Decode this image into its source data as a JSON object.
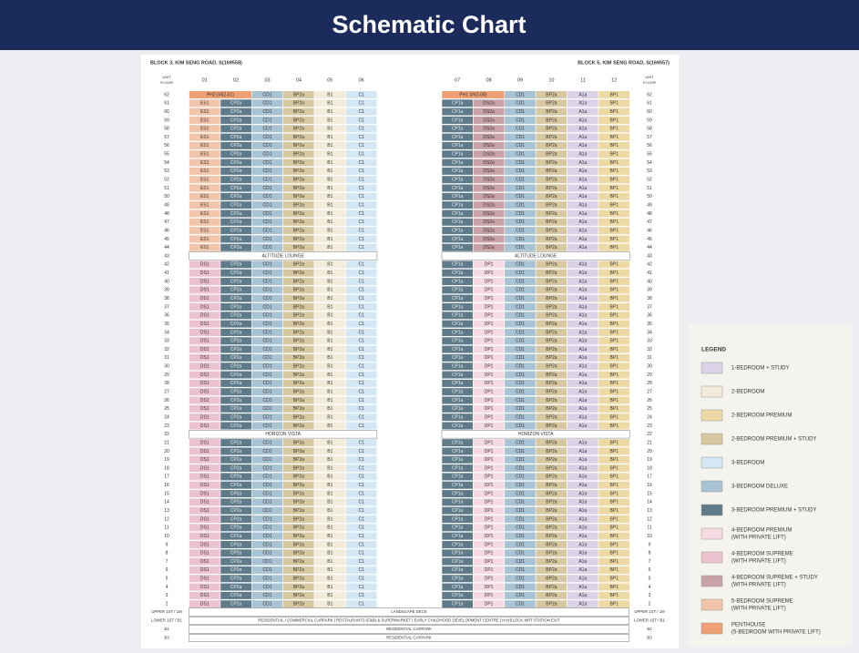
{
  "header": {
    "title": "Schematic Chart"
  },
  "unit_floor_label": [
    "UNIT",
    "FLOOR"
  ],
  "floors": [
    62,
    61,
    60,
    59,
    58,
    57,
    56,
    55,
    54,
    53,
    52,
    51,
    50,
    49,
    48,
    47,
    46,
    45,
    44,
    43,
    42,
    41,
    40,
    39,
    38,
    37,
    36,
    35,
    34,
    33,
    32,
    31,
    30,
    29,
    28,
    27,
    26,
    25,
    24,
    23,
    22,
    21,
    20,
    19,
    18,
    17,
    16,
    15,
    14,
    13,
    12,
    11,
    10,
    9,
    8,
    7,
    6,
    5,
    4,
    3,
    2
  ],
  "blocks": [
    {
      "title": "BLOCK 3, KIM SENG ROAD, S(169558)",
      "units": [
        "01",
        "02",
        "03",
        "04",
        "05",
        "06"
      ],
      "rows": [
        [
          "PH2 (#62-01)",
          null,
          "CD1",
          "BP2a",
          "B1",
          "C1"
        ],
        [
          "ES1",
          "CP2a",
          "CD1",
          "BP2a",
          "B1",
          "C1"
        ],
        [
          "ES1",
          "CP2a",
          "CD1",
          "BP2a",
          "B1",
          "C1"
        ],
        [
          "ES1",
          "CP2a",
          "CD1",
          "BP2a",
          "B1",
          "C1"
        ],
        [
          "ES1",
          "CP2a",
          "CD1",
          "BP2a",
          "B1",
          "C1"
        ],
        [
          "ES1",
          "CP2a",
          "CD1",
          "BP2a",
          "B1",
          "C1"
        ],
        [
          "ES1",
          "CP2a",
          "CD1",
          "BP2a",
          "B1",
          "C1"
        ],
        [
          "ES1",
          "CP2a",
          "CD1",
          "BP2a",
          "B1",
          "C1"
        ],
        [
          "ES1",
          "CP2a",
          "CD1",
          "BP2a",
          "B1",
          "C1"
        ],
        [
          "ES1",
          "CP2a",
          "CD1",
          "BP2a",
          "B1",
          "C1"
        ],
        [
          "ES1",
          "CP2a",
          "CD1",
          "BP2a",
          "B1",
          "C1"
        ],
        [
          "ES1",
          "CP2a",
          "CD1",
          "BP2a",
          "B1",
          "C1"
        ],
        [
          "ES1",
          "CP2a",
          "CD1",
          "BP2a",
          "B1",
          "C1"
        ],
        [
          "ES1",
          "CP2a",
          "CD1",
          "BP2a",
          "B1",
          "C1"
        ],
        [
          "ES1",
          "CP2a",
          "CD1",
          "BP2a",
          "B1",
          "C1"
        ],
        [
          "ES1",
          "CP2a",
          "CD1",
          "BP2a",
          "B1",
          "C1"
        ],
        [
          "ES1",
          "CP2a",
          "CD1",
          "BP2a",
          "B1",
          "C1"
        ],
        [
          "ES1",
          "CP2a",
          "CD1",
          "BP2a",
          "B1",
          "C1"
        ],
        [
          "ES1",
          "CP2a",
          "CD1",
          "BP2a",
          "B1",
          "C1"
        ],
        "ALTITUDE LOUNGE",
        [
          "DS1",
          "CP2a",
          "CD1",
          "BP2a",
          "B1",
          "C1"
        ],
        [
          "DS1",
          "CP2a",
          "CD1",
          "BP2a",
          "B1",
          "C1"
        ],
        [
          "DS1",
          "CP2a",
          "CD1",
          "BP2a",
          "B1",
          "C1"
        ],
        [
          "DS1",
          "CP2a",
          "CD1",
          "BP2a",
          "B1",
          "C1"
        ],
        [
          "DS1",
          "CP2a",
          "CD1",
          "BP2a",
          "B1",
          "C1"
        ],
        [
          "DS1",
          "CP2a",
          "CD1",
          "BP2a",
          "B1",
          "C1"
        ],
        [
          "DS1",
          "CP2a",
          "CD1",
          "BP2a",
          "B1",
          "C1"
        ],
        [
          "DS1",
          "CP2a",
          "CD1",
          "BP2a",
          "B1",
          "C1"
        ],
        [
          "DS1",
          "CP2a",
          "CD1",
          "BP2a",
          "B1",
          "C1"
        ],
        [
          "DS1",
          "CP2a",
          "CD1",
          "BP2a",
          "B1",
          "C1"
        ],
        [
          "DS1",
          "CP2a",
          "CD1",
          "BP2a",
          "B1",
          "C1"
        ],
        [
          "DS1",
          "CP2a",
          "CD1",
          "BP2a",
          "B1",
          "C1"
        ],
        [
          "DS1",
          "CP2a",
          "CD1",
          "BP2a",
          "B1",
          "C1"
        ],
        [
          "DS1",
          "CP2a",
          "CD1",
          "BP2a",
          "B1",
          "C1"
        ],
        [
          "DS1",
          "CP2a",
          "CD1",
          "BP2a",
          "B1",
          "C1"
        ],
        [
          "DS1",
          "CP2a",
          "CD1",
          "BP2a",
          "B1",
          "C1"
        ],
        [
          "DS1",
          "CP2a",
          "CD1",
          "BP2a",
          "B1",
          "C1"
        ],
        [
          "DS1",
          "CP2a",
          "CD1",
          "BP2a",
          "B1",
          "C1"
        ],
        [
          "DS1",
          "CP2a",
          "CD1",
          "BP2a",
          "B1",
          "C1"
        ],
        [
          "DS1",
          "CP2a",
          "CD1",
          "BP2a",
          "B1",
          "C1"
        ],
        "HORIZON VISTA",
        [
          "DS1",
          "CP2a",
          "CD1",
          "BP2a",
          "B1",
          "C1"
        ],
        [
          "DS1",
          "CP2a",
          "CD1",
          "BP2a",
          "B1",
          "C1"
        ],
        [
          "DS1",
          "CP2a",
          "CD1",
          "BP2a",
          "B1",
          "C1"
        ],
        [
          "DS1",
          "CP2a",
          "CD1",
          "BP2a",
          "B1",
          "C1"
        ],
        [
          "DS1",
          "CP2a",
          "CD1",
          "BP2a",
          "B1",
          "C1"
        ],
        [
          "DS1",
          "CP2a",
          "CD1",
          "BP2a",
          "B1",
          "C1"
        ],
        [
          "DS1",
          "CP2a",
          "CD1",
          "BP2a",
          "B1",
          "C1"
        ],
        [
          "DS1",
          "CP2a",
          "CD1",
          "BP2a",
          "B1",
          "C1"
        ],
        [
          "DS1",
          "CP2a",
          "CD1",
          "BP2a",
          "B1",
          "C1"
        ],
        [
          "DS1",
          "CP2a",
          "CD1",
          "BP2a",
          "B1",
          "C1"
        ],
        [
          "DS1",
          "CP2a",
          "CD1",
          "BP2a",
          "B1",
          "C1"
        ],
        [
          "DS1",
          "CP2a",
          "CD1",
          "BP2a",
          "B1",
          "C1"
        ],
        [
          "DS1",
          "CP2a",
          "CD1",
          "BP2a",
          "B1",
          "C1"
        ],
        [
          "DS1",
          "CP2a",
          "CD1",
          "BP2a",
          "B1",
          "C1"
        ],
        [
          "DS1",
          "CP2a",
          "CD1",
          "BP2a",
          "B1",
          "C1"
        ],
        [
          "DS1",
          "CP2a",
          "CD1",
          "BP2a",
          "B1",
          "C1"
        ],
        [
          "DS1",
          "CP2a",
          "CD1",
          "BP2a",
          "B1",
          "C1"
        ],
        [
          "DS1",
          "CP2a",
          "CD1",
          "BP2a",
          "B1",
          "C1"
        ],
        [
          "DS1",
          "CP2a",
          "CD1",
          "BP2a",
          "B1",
          "C1"
        ],
        [
          "DS1",
          "CP2a",
          "CD1",
          "BP2a",
          "B1",
          "C1"
        ]
      ]
    },
    {
      "title": "BLOCK 5, KIM SENG ROAD, S(169557)",
      "units": [
        "07",
        "08",
        "09",
        "10",
        "11",
        "12"
      ],
      "rows": [
        [
          "PH1 (#62-08)",
          null,
          "CD1",
          "BP2a",
          "A1a",
          "BP1"
        ],
        [
          "CP1a",
          "DS2a",
          "CD1",
          "BP2a",
          "A1a",
          "BP1"
        ],
        [
          "CP1a",
          "DS2a",
          "CD1",
          "BP2a",
          "A1a",
          "BP1"
        ],
        [
          "CP1a",
          "DS2a",
          "CD1",
          "BP2a",
          "A1a",
          "BP1"
        ],
        [
          "CP1a",
          "DS2a",
          "CD1",
          "BP2a",
          "A1a",
          "BP1"
        ],
        [
          "CP1a",
          "DS2a",
          "CD1",
          "BP2a",
          "A1a",
          "BP1"
        ],
        [
          "CP1a",
          "DS2a",
          "CD1",
          "BP2a",
          "A1a",
          "BP1"
        ],
        [
          "CP1a",
          "DS2a",
          "CD1",
          "BP2a",
          "A1a",
          "BP1"
        ],
        [
          "CP1a",
          "DS2a",
          "CD1",
          "BP2a",
          "A1a",
          "BP1"
        ],
        [
          "CP1a",
          "DS2a",
          "CD1",
          "BP2a",
          "A1a",
          "BP1"
        ],
        [
          "CP1a",
          "DS2a",
          "CD1",
          "BP2a",
          "A1a",
          "BP1"
        ],
        [
          "CP1a",
          "DS2a",
          "CD1",
          "BP2a",
          "A1a",
          "BP1"
        ],
        [
          "CP1a",
          "DS2a",
          "CD1",
          "BP2a",
          "A1a",
          "BP1"
        ],
        [
          "CP1a",
          "DS2a",
          "CD1",
          "BP2a",
          "A1a",
          "BP1"
        ],
        [
          "CP1a",
          "DS2a",
          "CD1",
          "BP2a",
          "A1a",
          "BP1"
        ],
        [
          "CP1a",
          "DS2a",
          "CD1",
          "BP2a",
          "A1a",
          "BP1"
        ],
        [
          "CP1a",
          "DS2a",
          "CD1",
          "BP2a",
          "A1a",
          "BP1"
        ],
        [
          "CP1a",
          "DS2a",
          "CD1",
          "BP2a",
          "A1a",
          "BP1"
        ],
        [
          "CP1a",
          "DS2a",
          "CD1",
          "BP2a",
          "A1a",
          "BP1"
        ],
        "ALTITUDE LOUNGE",
        [
          "CP1a",
          "DP1",
          "CD1",
          "BP2a",
          "A1a",
          "BP1"
        ],
        [
          "CP1a",
          "DP1",
          "CD1",
          "BP2a",
          "A1a",
          "BP1"
        ],
        [
          "CP1a",
          "DP1",
          "CD1",
          "BP2a",
          "A1a",
          "BP1"
        ],
        [
          "CP1a",
          "DP1",
          "CD1",
          "BP2a",
          "A1a",
          "BP1"
        ],
        [
          "CP1a",
          "DP1",
          "CD1",
          "BP2a",
          "A1a",
          "BP1"
        ],
        [
          "CP1a",
          "DP1",
          "CD1",
          "BP2a",
          "A1a",
          "BP1"
        ],
        [
          "CP1a",
          "DP1",
          "CD1",
          "BP2a",
          "A1a",
          "BP1"
        ],
        [
          "CP1a",
          "DP1",
          "CD1",
          "BP2a",
          "A1a",
          "BP1"
        ],
        [
          "CP1a",
          "DP1",
          "CD1",
          "BP2a",
          "A1a",
          "BP1"
        ],
        [
          "CP1a",
          "DP1",
          "CD1",
          "BP2a",
          "A1a",
          "BP1"
        ],
        [
          "CP1a",
          "DP1",
          "CD1",
          "BP2a",
          "A1a",
          "BP1"
        ],
        [
          "CP1a",
          "DP1",
          "CD1",
          "BP2a",
          "A1a",
          "BP1"
        ],
        [
          "CP1a",
          "DP1",
          "CD1",
          "BP2a",
          "A1a",
          "BP1"
        ],
        [
          "CP1a",
          "DP1",
          "CD1",
          "BP2a",
          "A1a",
          "BP1"
        ],
        [
          "CP1a",
          "DP1",
          "CD1",
          "BP2a",
          "A1a",
          "BP1"
        ],
        [
          "CP1a",
          "DP1",
          "CD1",
          "BP2a",
          "A1a",
          "BP1"
        ],
        [
          "CP1a",
          "DP1",
          "CD1",
          "BP2a",
          "A1a",
          "BP1"
        ],
        [
          "CP1a",
          "DP1",
          "CD1",
          "BP2a",
          "A1a",
          "BP1"
        ],
        [
          "CP1a",
          "DP1",
          "CD1",
          "BP2a",
          "A1a",
          "BP1"
        ],
        [
          "CP1a",
          "DP1",
          "CD1",
          "BP2a",
          "A1a",
          "BP1"
        ],
        "HORIZON VISTA",
        [
          "CP1a",
          "DP1",
          "CD1",
          "BP2a",
          "A1a",
          "BP1"
        ],
        [
          "CP1a",
          "DP1",
          "CD1",
          "BP2a",
          "A1a",
          "BP1"
        ],
        [
          "CP1a",
          "DP1",
          "CD1",
          "BP2a",
          "A1a",
          "BP1"
        ],
        [
          "CP1a",
          "DP1",
          "CD1",
          "BP2a",
          "A1a",
          "BP1"
        ],
        [
          "CP1a",
          "DP1",
          "CD1",
          "BP2a",
          "A1a",
          "BP1"
        ],
        [
          "CP1a",
          "DP1",
          "CD1",
          "BP2a",
          "A1a",
          "BP1"
        ],
        [
          "CP1a",
          "DP1",
          "CD1",
          "BP2a",
          "A1a",
          "BP1"
        ],
        [
          "CP1a",
          "DP1",
          "CD1",
          "BP2a",
          "A1a",
          "BP1"
        ],
        [
          "CP1a",
          "DP1",
          "CD1",
          "BP2a",
          "A1a",
          "BP1"
        ],
        [
          "CP1a",
          "DP1",
          "CD1",
          "BP2a",
          "A1a",
          "BP1"
        ],
        [
          "CP1a",
          "DP1",
          "CD1",
          "BP2a",
          "A1a",
          "BP1"
        ],
        [
          "CP1a",
          "DP1",
          "CD1",
          "BP2a",
          "A1a",
          "BP1"
        ],
        [
          "CP1a",
          "DP1",
          "CD1",
          "BP2a",
          "A1a",
          "BP1"
        ],
        [
          "CP1a",
          "DP1",
          "CD1",
          "BP2a",
          "A1a",
          "BP1"
        ],
        [
          "CP1a",
          "DP1",
          "CD1",
          "BP2a",
          "A1a",
          "BP1"
        ],
        [
          "CP1a",
          "DP1",
          "CD1",
          "BP2a",
          "A1a",
          "BP1"
        ],
        [
          "CP1a",
          "DP1",
          "CD1",
          "BP2a",
          "A1a",
          "BP1"
        ],
        [
          "CP1a",
          "DP1",
          "CD1",
          "BP2a",
          "A1a",
          "BP1"
        ],
        [
          "CP1a",
          "DP1",
          "CD1",
          "BP2a",
          "A1a",
          "BP1"
        ],
        [
          "CP1a",
          "DP1",
          "CD1",
          "BP2a",
          "A1a",
          "BP1"
        ]
      ]
    }
  ],
  "unit_colors": {
    "PH2 (#62-01)": "#ee9f74",
    "PH1 (#62-08)": "#ee9f74",
    "ES1": "#f2c4aa",
    "DS1": "#ecc2ce",
    "DS2a": "#c9a2a8",
    "DP1": "#f6dae1",
    "CP2a": "#5f7b89",
    "CP1a": "#5f7b89",
    "CD1": "#a8c3d3",
    "C1": "#d3e8f4",
    "BP2a": "#d8c8a0",
    "BP1": "#edd9a4",
    "B1": "#f4ecdb",
    "A1a": "#dcd2e8"
  },
  "lower_floors": [
    {
      "left": "UPPER 1ST / 1M",
      "text": "LANDSCAPE DECK",
      "right": "UPPER 1ST / 1M"
    },
    {
      "left": "LOWER 1ST / B1",
      "text": "RESIDENTIAL / COMMERCIAL CARPARK  |  RESTAURANTS (F&B) & SUPERMARKET  |  EARLY CHILDHOOD DEVELOPMENT CENTRE  |  HAVELOCK MRT STATION EXIT",
      "right": "LOWER 1ST / B1"
    },
    {
      "left": "B2",
      "text": "RESIDENTIAL CARPARK",
      "right": "B2"
    },
    {
      "left": "B3",
      "text": "RESIDENTIAL CARPARK",
      "right": "B3"
    }
  ],
  "legend": {
    "title": "LEGEND",
    "items": [
      {
        "label": [
          "1-BEDROOM + STUDY"
        ],
        "color": "#dcd2e8"
      },
      {
        "label": [
          "2-BEDROOM"
        ],
        "color": "#f4ecdb"
      },
      {
        "label": [
          "2-BEDROOM PREMIUM"
        ],
        "color": "#edd9a4"
      },
      {
        "label": [
          "2-BEDROOM PREMIUM + STUDY"
        ],
        "color": "#d8c8a0"
      },
      {
        "label": [
          "3-BEDROOM"
        ],
        "color": "#d3e8f4"
      },
      {
        "label": [
          "3-BEDROOM DELUXE"
        ],
        "color": "#a8c3d3"
      },
      {
        "label": [
          "3-BEDROOM PREMIUM + STUDY"
        ],
        "color": "#5f7b89"
      },
      {
        "label": [
          "4-BEDROOM PREMIUM",
          "(WITH PRIVATE LIFT)"
        ],
        "color": "#f6dae1"
      },
      {
        "label": [
          "4-BEDROOM SUPREME",
          "(WITH PRIVATE LIFT)"
        ],
        "color": "#ecc2ce"
      },
      {
        "label": [
          "4-BEDROOM SUPREME + STUDY",
          "(WITH PRIVATE LIFT)"
        ],
        "color": "#c9a2a8"
      },
      {
        "label": [
          "5-BEDROOM SUPREME",
          "(WITH PRIVATE LIFT)"
        ],
        "color": "#f2c4aa"
      },
      {
        "label": [
          "PENTHOUSE",
          "(5-BEDROOM WITH PRIVATE LIFT)"
        ],
        "color": "#ee9f74"
      }
    ]
  }
}
